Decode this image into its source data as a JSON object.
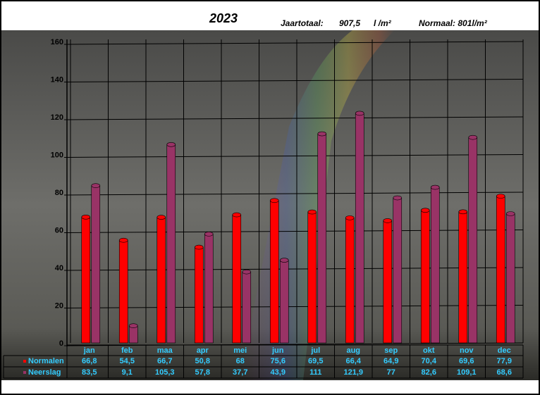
{
  "chart_data": {
    "type": "bar",
    "title": "2023",
    "header": {
      "total_label": "Jaartotaal:",
      "total": "907,5",
      "unit": "l /m²",
      "normal": "Normaal: 801l/m²"
    },
    "categories": [
      "jan",
      "feb",
      "maa",
      "apr",
      "mei",
      "jun",
      "jul",
      "aug",
      "sep",
      "okt",
      "nov",
      "dec"
    ],
    "series": [
      {
        "name": "Normalen",
        "color": "#ff0000",
        "values": [
          66.8,
          54.5,
          66.7,
          50.8,
          68,
          75.6,
          69.5,
          66.4,
          64.9,
          70.4,
          69.6,
          77.9
        ],
        "value_labels": [
          "66,8",
          "54,5",
          "66,7",
          "50,8",
          "68",
          "75,6",
          "69,5",
          "66,4",
          "64,9",
          "70,4",
          "69,6",
          "77,9"
        ]
      },
      {
        "name": "Neerslag",
        "color": "#993366",
        "values": [
          83.5,
          9.1,
          105.3,
          57.8,
          37.7,
          43.9,
          111,
          121.9,
          77,
          82.6,
          109.1,
          68.6
        ],
        "value_labels": [
          "83,5",
          "9,1",
          "105,3",
          "57,8",
          "37,7",
          "43,9",
          "111",
          "121,9",
          "77",
          "82,6",
          "109,1",
          "68,6"
        ]
      }
    ],
    "ylim": [
      0,
      160
    ],
    "yticks": [
      0,
      20,
      40,
      60,
      80,
      100,
      120,
      140,
      160
    ],
    "grid": true
  }
}
